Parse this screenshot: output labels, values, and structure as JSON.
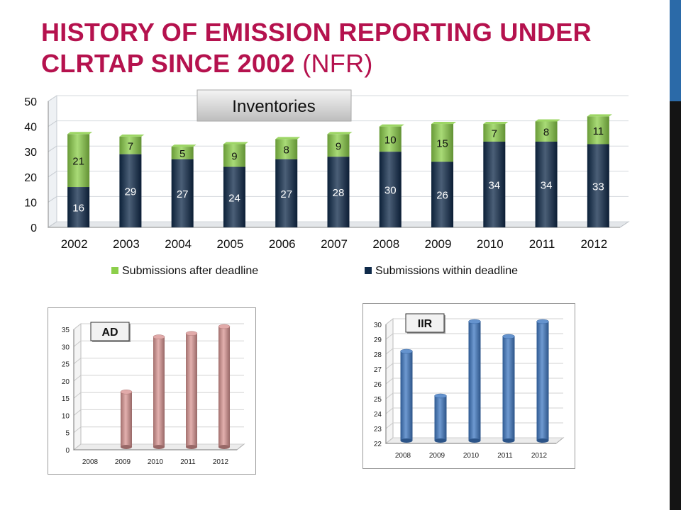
{
  "title": {
    "bold": "HISTORY OF EMISSION REPORTING UNDER CLRTAP SINCE  2002",
    "thin": "(NFR)"
  },
  "colors": {
    "title": "#b5124e",
    "within": "#0f2a4a",
    "after": "#8ccf4a",
    "ad": "#d99593",
    "iir": "#3f78c2",
    "accent_band": "#2b6aa8"
  },
  "chart_data": [
    {
      "type": "bar",
      "stacked": true,
      "label_box": "Inventories",
      "categories": [
        "2002",
        "2003",
        "2004",
        "2005",
        "2006",
        "2007",
        "2008",
        "2009",
        "2010",
        "2011",
        "2012"
      ],
      "series": [
        {
          "name": "Submissions within deadline",
          "values": [
            16,
            29,
            27,
            24,
            27,
            28,
            30,
            26,
            34,
            34,
            33
          ]
        },
        {
          "name": "Submissions after deadline",
          "values": [
            21,
            7,
            5,
            9,
            8,
            9,
            10,
            15,
            7,
            8,
            11
          ]
        }
      ],
      "ylim": [
        0,
        50
      ],
      "yticks": [
        "0",
        "10",
        "20",
        "30",
        "40",
        "50"
      ],
      "legend": "bottom",
      "grid": true
    },
    {
      "type": "bar",
      "label_box": "AD",
      "categories": [
        "2008",
        "2009",
        "2010",
        "2011",
        "2012"
      ],
      "values": [
        0,
        16,
        32,
        33,
        35
      ],
      "ylim": [
        0,
        35
      ],
      "yticks": [
        "0",
        "5",
        "10",
        "15",
        "20",
        "25",
        "30",
        "35"
      ],
      "grid": true
    },
    {
      "type": "bar",
      "label_box": "IIR",
      "categories": [
        "2008",
        "2009",
        "2010",
        "2011",
        "2012"
      ],
      "values": [
        28,
        25,
        30,
        29,
        30
      ],
      "ylim": [
        22,
        30
      ],
      "yticks": [
        "22",
        "23",
        "24",
        "25",
        "26",
        "27",
        "28",
        "29",
        "30"
      ],
      "grid": true
    }
  ]
}
